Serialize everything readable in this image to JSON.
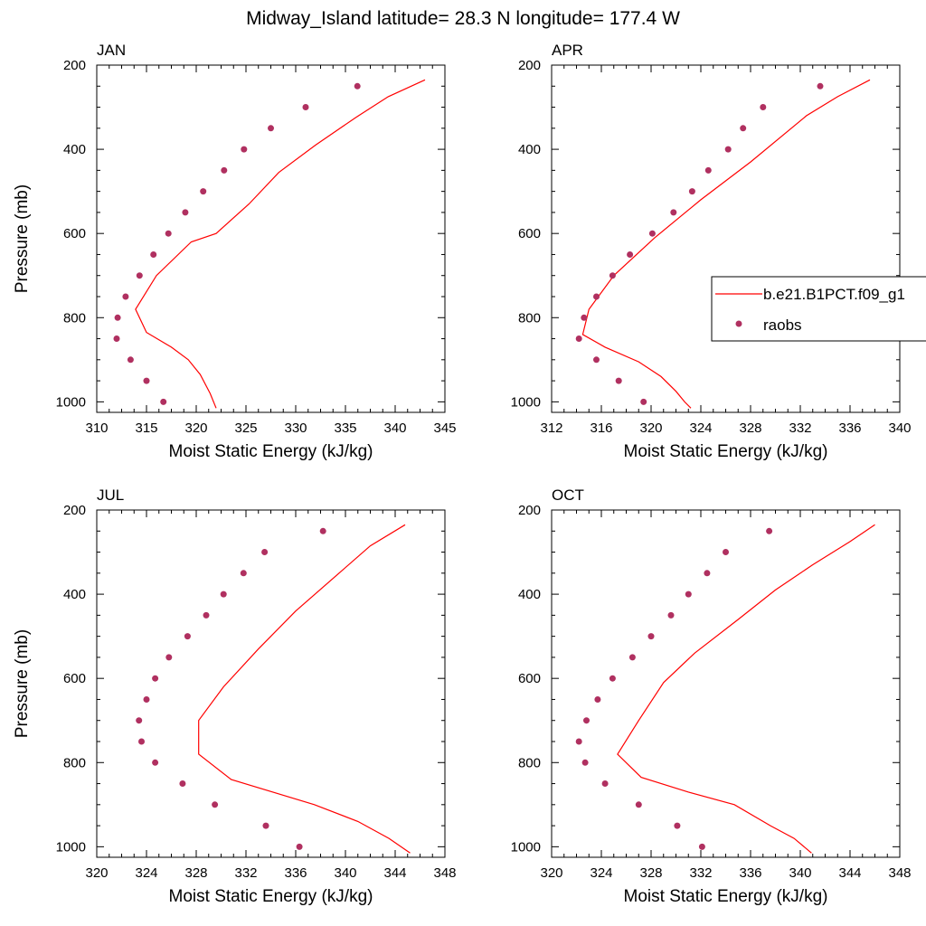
{
  "title": "Midway_Island  latitude= 28.3 N longitude= 177.4 W",
  "xlabel": "Moist Static Energy (kJ/kg)",
  "ylabel": "Pressure (mb)",
  "legend": {
    "placement": "right-middle",
    "model_label": "b.e21.B1PCT.f09_g1",
    "obs_label": "raobs"
  },
  "colors": {
    "model_line": "#ff0000",
    "obs_marker": "#b03060",
    "axes": "#000000"
  },
  "chart_data": [
    {
      "type": "line",
      "panel": "JAN",
      "xlim": [
        310,
        345
      ],
      "ylim": [
        1025,
        200
      ],
      "xticks": [
        310,
        315,
        320,
        325,
        330,
        335,
        340,
        345
      ],
      "yticks": [
        200,
        400,
        600,
        800,
        1000
      ],
      "series": [
        {
          "name": "b.e21.B1PCT.f09_g1",
          "kind": "line",
          "x": [
            343.0,
            339.3,
            336.0,
            332.0,
            328.3,
            325.3,
            322.0,
            319.5,
            316.0,
            313.9,
            315.0,
            317.5,
            319.2,
            320.4,
            321.4,
            322.0
          ],
          "y": [
            235,
            275,
            325,
            390,
            455,
            530,
            600,
            620,
            700,
            780,
            835,
            870,
            900,
            935,
            980,
            1015
          ]
        },
        {
          "name": "raobs",
          "kind": "scatter",
          "x": [
            336.2,
            331.0,
            327.5,
            324.8,
            322.8,
            320.7,
            318.9,
            317.2,
            315.7,
            314.3,
            312.9,
            312.1,
            312.0,
            313.4,
            315.0,
            316.7
          ],
          "y": [
            250,
            300,
            350,
            400,
            450,
            500,
            550,
            600,
            650,
            700,
            750,
            800,
            850,
            900,
            950,
            1000
          ]
        }
      ]
    },
    {
      "type": "line",
      "panel": "APR",
      "xlim": [
        312,
        340
      ],
      "ylim": [
        1025,
        200
      ],
      "xticks": [
        312,
        316,
        320,
        324,
        328,
        332,
        336,
        340
      ],
      "yticks": [
        200,
        400,
        600,
        800,
        1000
      ],
      "series": [
        {
          "name": "b.e21.B1PCT.f09_g1",
          "kind": "line",
          "x": [
            337.6,
            335.0,
            332.5,
            328.0,
            324.0,
            320.3,
            317.0,
            315.0,
            314.5,
            316.3,
            319.0,
            320.8,
            322.0,
            322.7,
            323.2
          ],
          "y": [
            235,
            275,
            320,
            430,
            520,
            610,
            700,
            780,
            840,
            870,
            905,
            940,
            975,
            1000,
            1015
          ]
        },
        {
          "name": "raobs",
          "kind": "scatter",
          "x": [
            333.6,
            329.0,
            327.4,
            326.2,
            324.6,
            323.3,
            321.8,
            320.1,
            318.3,
            316.9,
            315.6,
            314.6,
            314.2,
            315.6,
            317.4,
            319.4
          ],
          "y": [
            250,
            300,
            350,
            400,
            450,
            500,
            550,
            600,
            650,
            700,
            750,
            800,
            850,
            900,
            950,
            1000
          ]
        }
      ]
    },
    {
      "type": "line",
      "panel": "JUL",
      "xlim": [
        320,
        348
      ],
      "ylim": [
        1025,
        200
      ],
      "xticks": [
        320,
        324,
        328,
        332,
        336,
        340,
        344,
        348
      ],
      "yticks": [
        200,
        400,
        600,
        800,
        1000
      ],
      "series": [
        {
          "name": "b.e21.B1PCT.f09_g1",
          "kind": "line",
          "x": [
            344.8,
            342.0,
            336.0,
            333.0,
            330.2,
            328.2,
            328.2,
            330.8,
            337.5,
            341.0,
            343.5,
            345.2
          ],
          "y": [
            235,
            285,
            440,
            530,
            620,
            700,
            780,
            840,
            900,
            940,
            980,
            1015
          ]
        },
        {
          "name": "raobs",
          "kind": "scatter",
          "x": [
            338.2,
            333.5,
            331.8,
            330.2,
            328.8,
            327.3,
            325.8,
            324.7,
            324.0,
            323.4,
            323.6,
            324.7,
            326.9,
            329.5,
            333.6,
            336.3
          ],
          "y": [
            250,
            300,
            350,
            400,
            450,
            500,
            550,
            600,
            650,
            700,
            750,
            800,
            850,
            900,
            950,
            1000
          ]
        }
      ]
    },
    {
      "type": "line",
      "panel": "OCT",
      "xlim": [
        320,
        348
      ],
      "ylim": [
        1025,
        200
      ],
      "xticks": [
        320,
        324,
        328,
        332,
        336,
        340,
        344,
        348
      ],
      "yticks": [
        200,
        400,
        600,
        800,
        1000
      ],
      "series": [
        {
          "name": "b.e21.B1PCT.f09_g1",
          "kind": "line",
          "x": [
            346.0,
            344.0,
            341.0,
            338.0,
            335.0,
            331.5,
            329.0,
            327.0,
            325.3,
            327.2,
            331.0,
            334.7,
            337.6,
            339.5,
            340.9
          ],
          "y": [
            235,
            275,
            330,
            390,
            460,
            540,
            610,
            700,
            780,
            835,
            870,
            900,
            950,
            980,
            1015
          ]
        },
        {
          "name": "raobs",
          "kind": "scatter",
          "x": [
            337.5,
            334.0,
            332.5,
            331.0,
            329.6,
            328.0,
            326.5,
            324.9,
            323.7,
            322.8,
            322.2,
            322.7,
            324.3,
            327.0,
            330.1,
            332.1
          ],
          "y": [
            250,
            300,
            350,
            400,
            450,
            500,
            550,
            600,
            650,
            700,
            750,
            800,
            850,
            900,
            950,
            1000
          ]
        }
      ]
    }
  ]
}
